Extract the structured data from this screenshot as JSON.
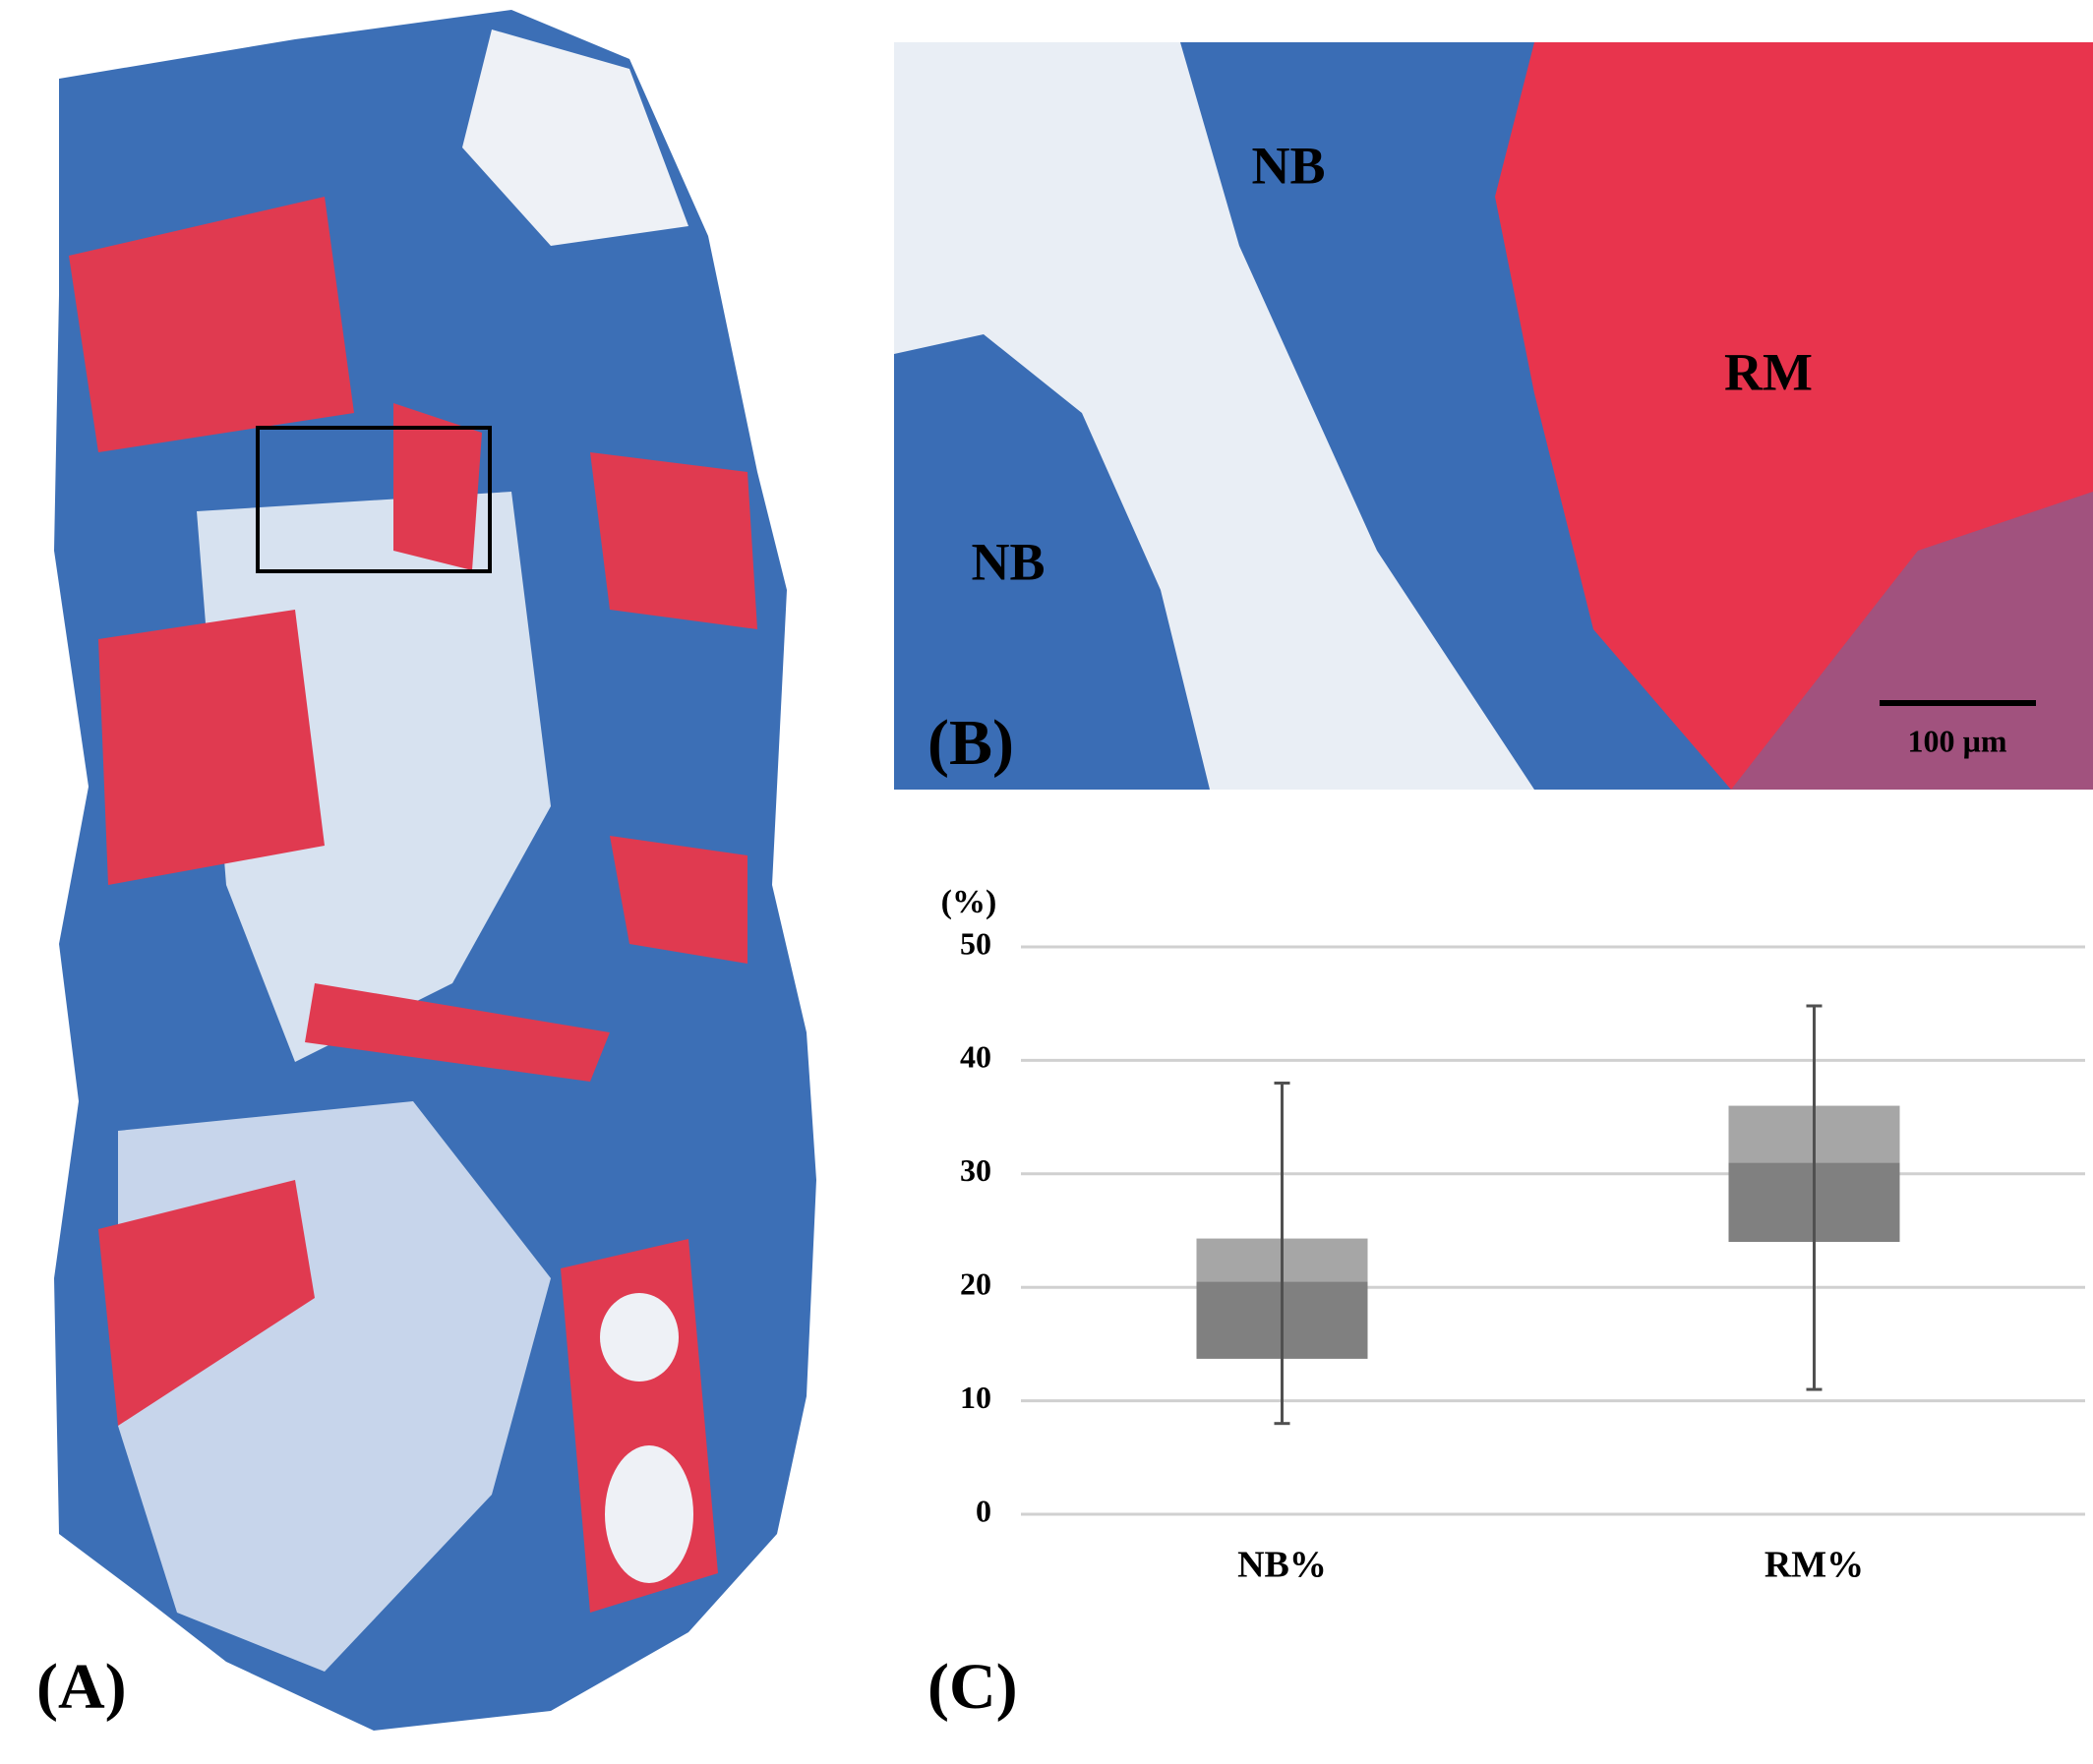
{
  "panels": {
    "a_label": "(A)",
    "b_label": "(B)",
    "c_label": "(C)",
    "b_nb_upper": "NB",
    "b_nb_lower": "NB",
    "b_rm": "RM",
    "scale_bar": "100 µm"
  },
  "chart_data": {
    "type": "box",
    "y_label": "(%)",
    "categories": [
      "NB%",
      "RM%"
    ],
    "boxes": [
      {
        "min": 8,
        "q1": 13.7,
        "median": 20.5,
        "q3": 24.3,
        "max": 38
      },
      {
        "min": 11,
        "q1": 24,
        "median": 31,
        "q3": 36,
        "max": 44.8
      }
    ],
    "lower_color": "#808080",
    "upper_color": "#a6a6a6",
    "ylim": [
      0,
      50
    ],
    "yticks": [
      0,
      10,
      20,
      30,
      40,
      50
    ],
    "grid": true
  }
}
